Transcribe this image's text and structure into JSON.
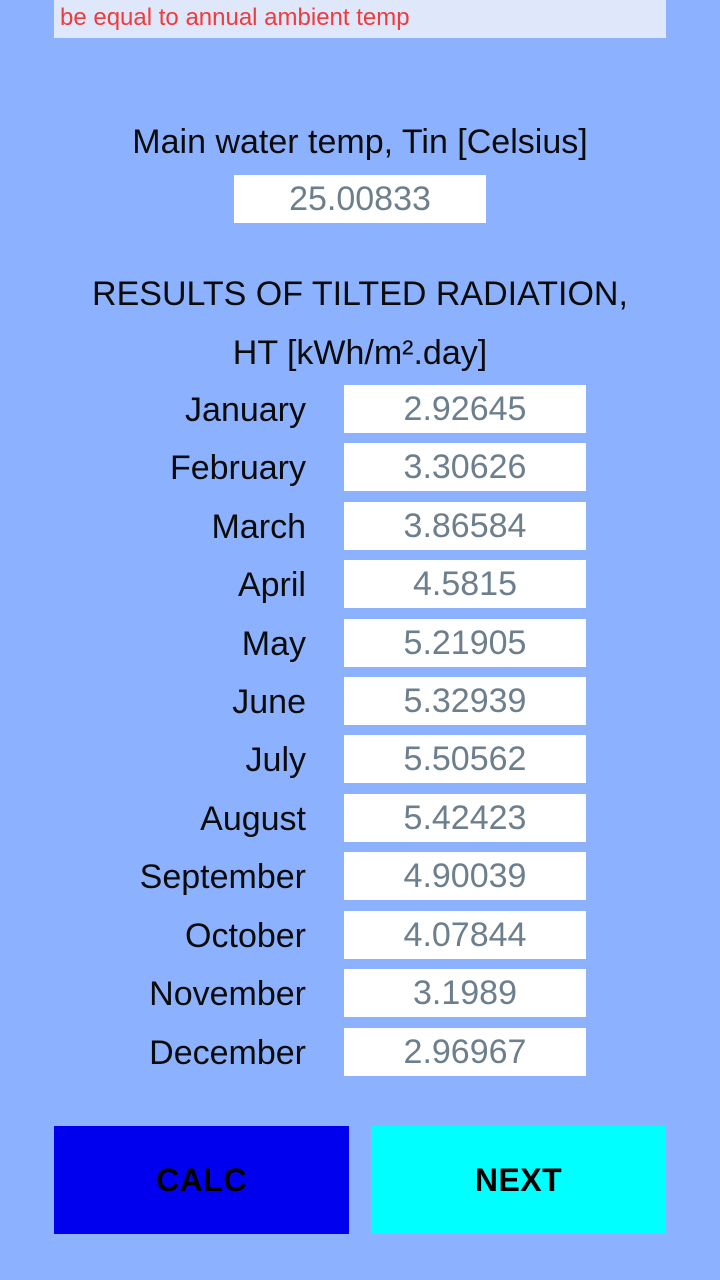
{
  "note": {
    "text": "be equal to annual ambient temp"
  },
  "main_water_temp": {
    "label": "Main water temp, Tin [Celsius]",
    "value": "25.00833"
  },
  "results": {
    "title_line1": "RESULTS OF TILTED RADIATION,",
    "title_line2": "HT [kWh/m².day]",
    "months": [
      {
        "label": "January",
        "value": "2.92645"
      },
      {
        "label": "February",
        "value": "3.30626"
      },
      {
        "label": "March",
        "value": "3.86584"
      },
      {
        "label": "April",
        "value": "4.5815"
      },
      {
        "label": "May",
        "value": "5.21905"
      },
      {
        "label": "June",
        "value": "5.32939"
      },
      {
        "label": "July",
        "value": "5.50562"
      },
      {
        "label": "August",
        "value": "5.42423"
      },
      {
        "label": "September",
        "value": "4.90039"
      },
      {
        "label": "October",
        "value": "4.07844"
      },
      {
        "label": "November",
        "value": "3.1989"
      },
      {
        "label": "December",
        "value": "2.96967"
      }
    ]
  },
  "buttons": {
    "calc_label": "CALC",
    "next_label": "NEXT"
  },
  "colors": {
    "background": "#8cb2ff",
    "note_background": "#dfe8fb",
    "note_text": "#ef3b3b",
    "field_background": "#ffffff",
    "field_text": "#6d7f8d",
    "calc_button": "#0000ee",
    "next_button": "#00ffff"
  }
}
